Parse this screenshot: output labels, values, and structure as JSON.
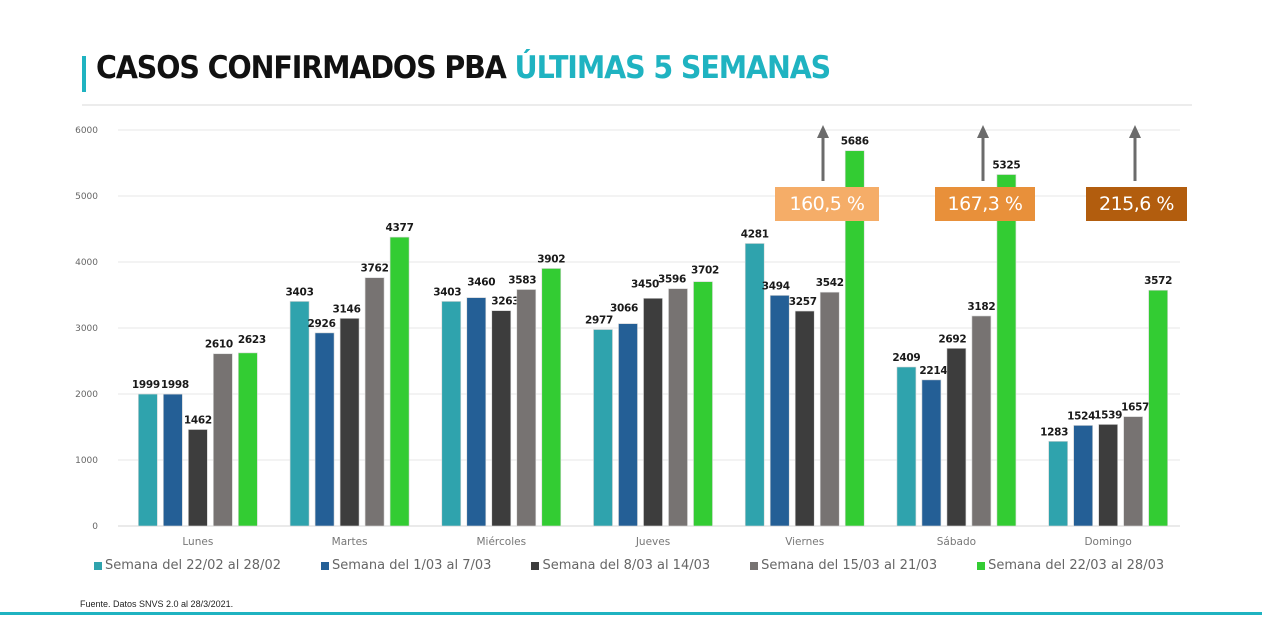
{
  "header": {
    "title_main": "CASOS CONFIRMADOS PBA ",
    "title_accent": "ÚLTIMAS 5 SEMANAS"
  },
  "footer": {
    "source": "Fuente. Datos SNVS 2.0 al 28/3/2021."
  },
  "colors": {
    "accent": "#1fb3c1",
    "series": [
      "#2fa3ad",
      "#245f96",
      "#3d3d3d",
      "#777372",
      "#33cc33"
    ],
    "pct_boxes": [
      "#f5ad68",
      "#e8903a",
      "#b25d0e"
    ],
    "arrow": "#6b6b6b"
  },
  "annotations": [
    {
      "label": "160,5 %",
      "day": "Viernes"
    },
    {
      "label": "167,3 %",
      "day": "Sábado"
    },
    {
      "label": "215,6 %",
      "day": "Domingo"
    }
  ],
  "chart_data": {
    "type": "bar",
    "title": "CASOS CONFIRMADOS PBA ÚLTIMAS 5 SEMANAS",
    "xlabel": "",
    "ylabel": "",
    "ylim": [
      0,
      6000
    ],
    "yticks": [
      0,
      1000,
      2000,
      3000,
      4000,
      5000,
      6000
    ],
    "grid": true,
    "legend_position": "bottom",
    "categories": [
      "Lunes",
      "Martes",
      "Miércoles",
      "Jueves",
      "Viernes",
      "Sábado",
      "Domingo"
    ],
    "series": [
      {
        "name": "Semana del 22/02 al 28/02",
        "values": [
          1999,
          3403,
          3403,
          2977,
          4281,
          2409,
          1283
        ]
      },
      {
        "name": "Semana del 1/03 al 7/03",
        "values": [
          1998,
          2926,
          3460,
          3066,
          3494,
          2214,
          1524
        ]
      },
      {
        "name": "Semana del 8/03 al 14/03",
        "values": [
          1462,
          3146,
          3263,
          3450,
          3257,
          2692,
          1539
        ]
      },
      {
        "name": "Semana del 15/03 al 21/03",
        "values": [
          2610,
          3762,
          3583,
          3596,
          3542,
          3182,
          1657
        ]
      },
      {
        "name": "Semana del 22/03 al 28/03",
        "values": [
          2623,
          4377,
          3902,
          3702,
          5686,
          5325,
          3572
        ]
      }
    ],
    "annotations": [
      "160,5 %",
      "167,3 %",
      "215,6 %"
    ]
  }
}
